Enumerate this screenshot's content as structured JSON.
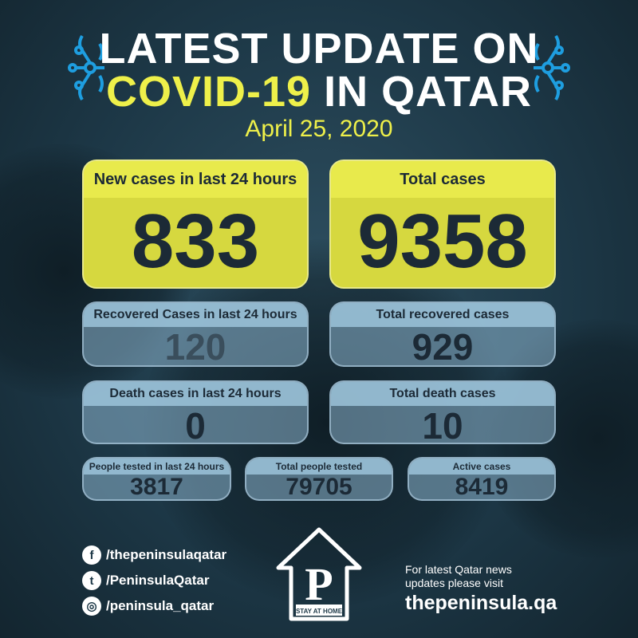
{
  "header": {
    "title_line1": "LATEST UPDATE ON",
    "title_highlight": "COVID-19",
    "title_rest": "IN QATAR",
    "date": "April 25, 2020"
  },
  "colors": {
    "accent_yellow": "#eef04a",
    "card_yellow": "#d6d83f",
    "card_blue": "#8cb4cd",
    "background": "#1d3847",
    "icon_blue": "#1e9ee0"
  },
  "stats": {
    "new_cases": {
      "label": "New cases in last 24 hours",
      "value": "833"
    },
    "total_cases": {
      "label": "Total cases",
      "value": "9358"
    },
    "recovered_24h": {
      "label": "Recovered Cases in last 24 hours",
      "value": "120"
    },
    "total_recovered": {
      "label": "Total recovered cases",
      "value": "929"
    },
    "deaths_24h": {
      "label": "Death cases in last 24 hours",
      "value": "0"
    },
    "total_deaths": {
      "label": "Total death cases",
      "value": "10"
    },
    "tested_24h": {
      "label": "People tested in last 24 hours",
      "value": "3817"
    },
    "total_tested": {
      "label": "Total people tested",
      "value": "79705"
    },
    "active": {
      "label": "Active cases",
      "value": "8419"
    }
  },
  "footer": {
    "social": [
      {
        "icon": "facebook-icon",
        "handle": "/thepeninsulaqatar"
      },
      {
        "icon": "twitter-icon",
        "handle": "/PeninsulaQatar"
      },
      {
        "icon": "instagram-icon",
        "handle": "/peninsula_qatar"
      }
    ],
    "logo_letter": "P",
    "logo_caption": "STAY AT HOME",
    "visit_text": "For latest Qatar news updates please visit",
    "website": "thepeninsula.qa"
  }
}
